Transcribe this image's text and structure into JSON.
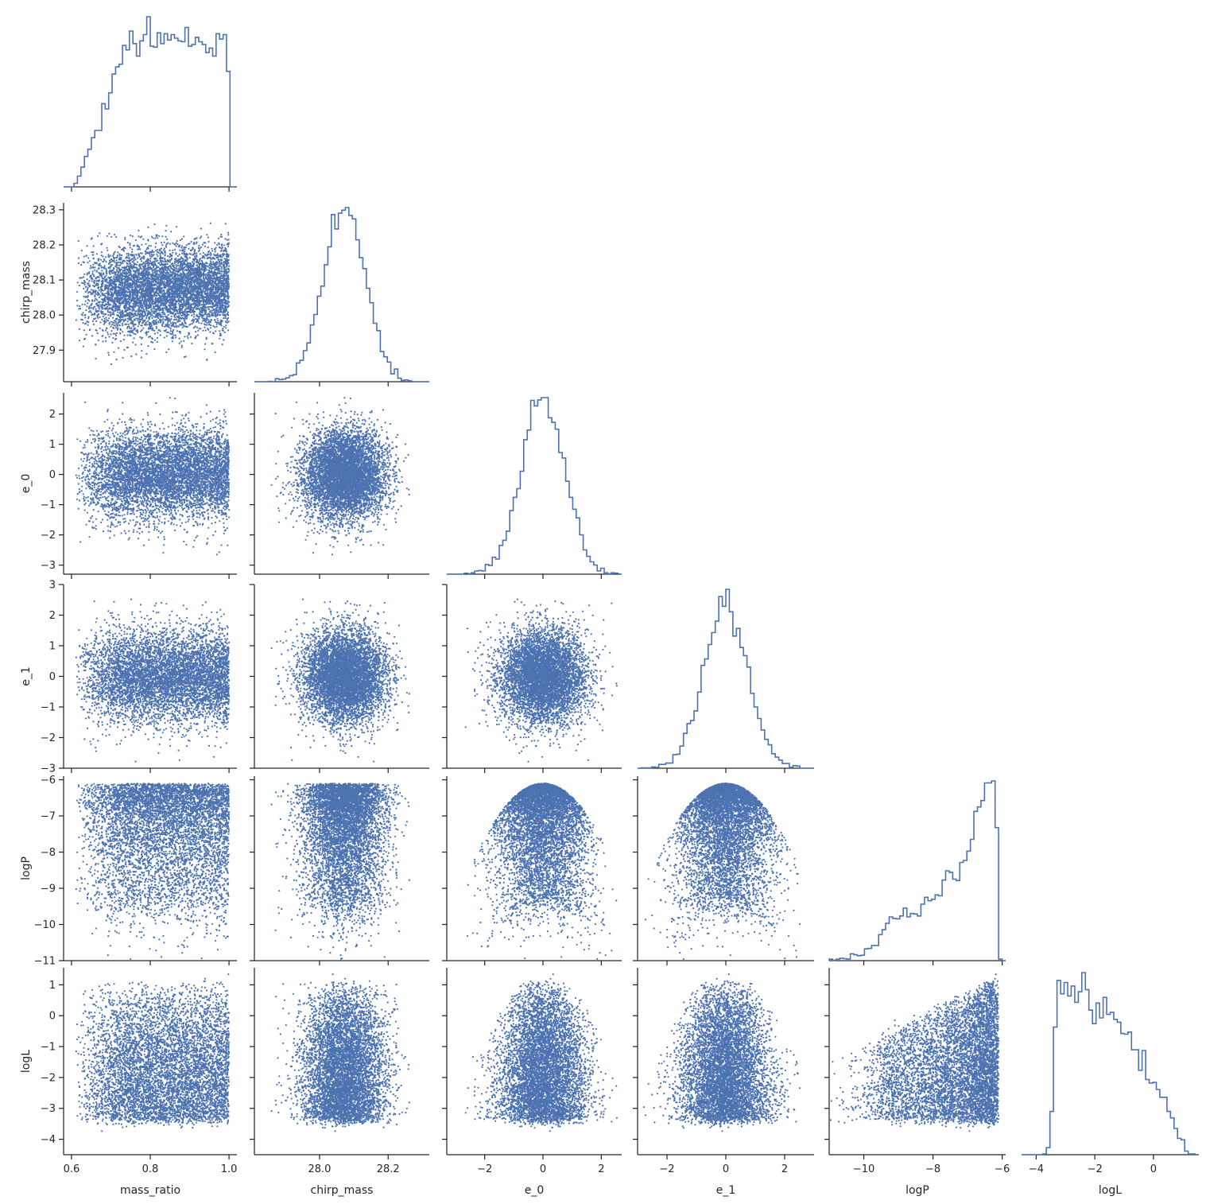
{
  "chart_data": {
    "type": "scatter",
    "title": "",
    "layout": "corner pair plot (lower triangle scatter, diagonal step histograms)",
    "color": "#4c72b0",
    "variables": [
      "mass_ratio",
      "chirp_mass",
      "e_0",
      "e_1",
      "logP",
      "logL"
    ],
    "axes": {
      "mass_ratio": {
        "label": "mass_ratio",
        "range": [
          0.58,
          1.02
        ],
        "ticks": [
          0.6,
          0.8,
          1.0
        ],
        "tick_labels": [
          "0.6",
          "0.8",
          "1.0"
        ]
      },
      "chirp_mass": {
        "label": "chirp_mass",
        "range": [
          27.81,
          28.32
        ],
        "ticks": [
          27.9,
          28.0,
          28.1,
          28.2,
          28.3
        ],
        "tick_labels": [
          "27.9",
          "28.0",
          "28.1",
          "28.2",
          "28.3"
        ],
        "x_ticks": [
          28.0,
          28.2
        ],
        "x_tick_labels": [
          "28.0",
          "28.2"
        ]
      },
      "e_0": {
        "label": "e_0",
        "range": [
          -3.3,
          2.7
        ],
        "ticks": [
          -3,
          -2,
          -1,
          0,
          1,
          2
        ],
        "tick_labels": [
          "−3",
          "−2",
          "−1",
          "0",
          "1",
          "2"
        ],
        "x_ticks": [
          -2,
          0,
          2
        ],
        "x_tick_labels": [
          "−2",
          "0",
          "2"
        ]
      },
      "e_1": {
        "label": "e_1",
        "range": [
          -3.0,
          3.0
        ],
        "ticks": [
          -3,
          -2,
          -1,
          0,
          1,
          2,
          3
        ],
        "tick_labels": [
          "−3",
          "−2",
          "−1",
          "0",
          "1",
          "2",
          "3"
        ],
        "x_ticks": [
          -2,
          0,
          2
        ],
        "x_tick_labels": [
          "−2",
          "0",
          "2"
        ]
      },
      "logP": {
        "label": "logP",
        "range": [
          -11.0,
          -5.9
        ],
        "ticks": [
          -11,
          -10,
          -9,
          -8,
          -7,
          -6
        ],
        "tick_labels": [
          "−11",
          "−10",
          "−9",
          "−8",
          "−7",
          "−6"
        ],
        "x_ticks": [
          -10,
          -8,
          -6
        ],
        "x_tick_labels": [
          "−10",
          "−8",
          "−6"
        ]
      },
      "logL": {
        "label": "logL",
        "range": [
          -4.5,
          1.55
        ],
        "ticks": [
          -4,
          -3,
          -2,
          -1,
          0,
          1
        ],
        "tick_labels": [
          "−4",
          "−3",
          "−2",
          "−1",
          "0",
          "1"
        ],
        "x_ticks": [
          -4,
          -2,
          0
        ],
        "x_tick_labels": [
          "−4",
          "−2",
          "0"
        ]
      }
    },
    "marginals": {
      "mass_ratio": "rises from 0.61 to a plateau near 0.75, flat to 1.0, sharp cutoff at 1.0",
      "chirp_mass": "approximately normal, mean 28.07, sd 0.06",
      "e_0": "approximately normal, mean 0, sd 0.75",
      "e_1": "approximately normal, mean 0, sd 0.75",
      "logP": "strongly left-skewed, upper bound near -6.1",
      "logL": "broad plateau from -3 to 0.5, tails to -4.3 and 1.4"
    },
    "relations": {
      "logP": "upper envelope logP = -6.1 - 0.38*(e_0^2 + e_1^2)",
      "logL": "bounded above by 1.35 - 0.45*(e_0^2+e_1^2) and about 4.6 + 0.55*logP"
    },
    "grid": false,
    "legend": "none"
  }
}
